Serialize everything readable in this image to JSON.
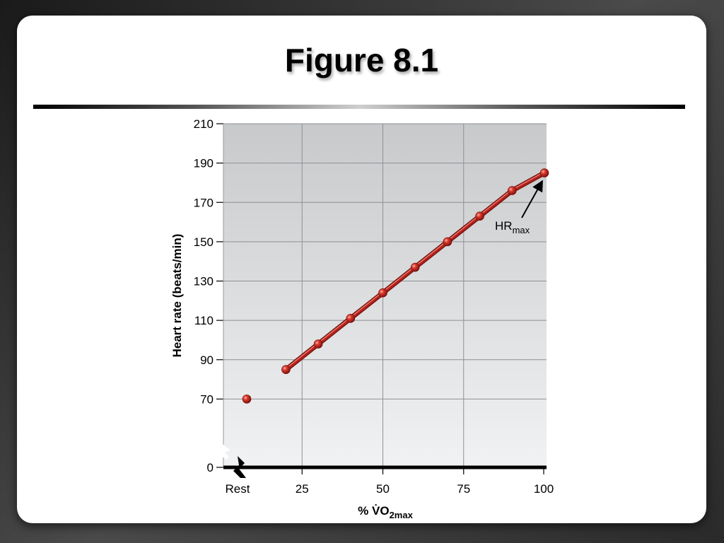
{
  "slide": {
    "title": "Figure 8.1"
  },
  "chart_data": {
    "type": "line",
    "xlabel": "% V̇O2max",
    "xlabel_main": "% V̇O",
    "xlabel_sub": "2max",
    "ylabel": "Heart rate (beats/min)",
    "x_ticks": [
      "Rest",
      "25",
      "50",
      "75",
      "100"
    ],
    "y_ticks": [
      "0",
      "70",
      "90",
      "110",
      "130",
      "150",
      "170",
      "190",
      "210"
    ],
    "xlim": [
      0,
      100
    ],
    "ylim": [
      50,
      210
    ],
    "y_axis_break": true,
    "grid": true,
    "rest_point": {
      "x": "Rest",
      "y": 70
    },
    "series": [
      {
        "x": [
          20,
          30,
          40,
          50,
          60,
          70,
          80,
          90,
          100
        ],
        "y": [
          85,
          98,
          111,
          124,
          137,
          150,
          163,
          176,
          185
        ]
      }
    ],
    "annotation": {
      "text_main": "HR",
      "text_sub": "max",
      "points_to": {
        "x": 100,
        "y": 185
      }
    },
    "colors": {
      "line": "#b8231c",
      "marker": "#c0261e",
      "plot_bg_top": "#c7c9cb",
      "plot_bg_bottom": "#f1f2f3",
      "grid": "#8e9195"
    }
  }
}
